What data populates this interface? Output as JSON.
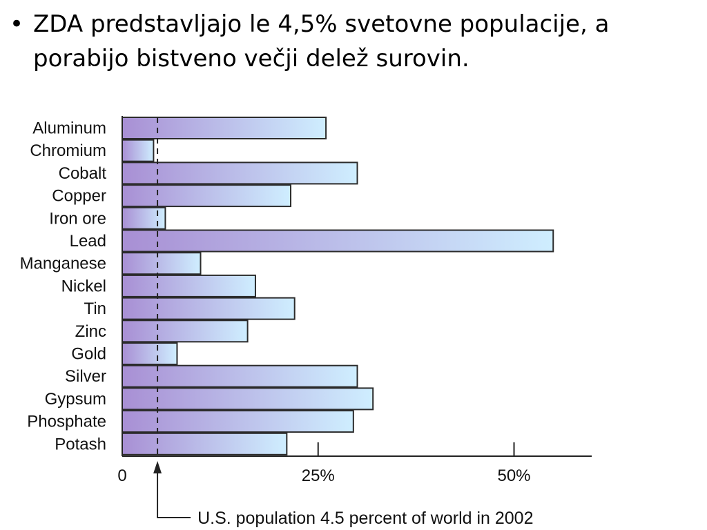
{
  "slide": {
    "bullet_symbol": "•",
    "bullet_text": "ZDA predstavljajo le 4,5% svetovne populacije, a porabijo bistveno večji delež surovin."
  },
  "colors": {
    "bar_left": "#a88fd4",
    "bar_right": "#cfeeff",
    "bar_stroke": "#2b2b2b",
    "axis": "#222222",
    "text": "#111111"
  },
  "chart_data": {
    "type": "bar",
    "orientation": "horizontal",
    "categories": [
      "Aluminum",
      "Chromium",
      "Cobalt",
      "Copper",
      "Iron ore",
      "Lead",
      "Manganese",
      "Nickel",
      "Tin",
      "Zinc",
      "Gold",
      "Silver",
      "Gypsum",
      "Phosphate",
      "Potash"
    ],
    "values": [
      26,
      4,
      30,
      21.5,
      5.5,
      55,
      10,
      17,
      22,
      16,
      7,
      30,
      32,
      29.5,
      21
    ],
    "value_unit": "percent",
    "xlim": [
      0,
      60
    ],
    "xticks": [
      0,
      25,
      50
    ],
    "xtick_labels": [
      "0",
      "25%",
      "50%"
    ],
    "reference_line": {
      "value": 4.5,
      "label": "U.S. population 4.5 percent of world in 2002",
      "style": "dashed"
    },
    "grid": false,
    "legend": "none"
  }
}
